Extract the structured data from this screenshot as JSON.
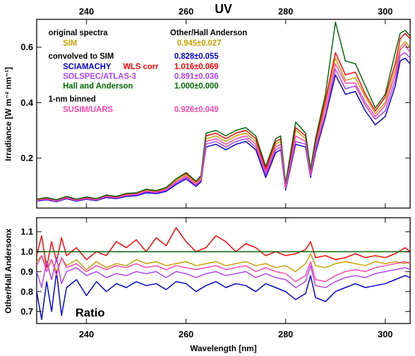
{
  "chart_data": [
    {
      "type": "line",
      "title": "UV",
      "xlabel": "",
      "ylabel": "Irradiance [W m⁻² nm⁻¹]",
      "xlim": [
        230,
        305
      ],
      "ylim": [
        0.02,
        0.7
      ],
      "x_ticks": [
        240,
        260,
        280,
        300
      ],
      "y_ticks": [
        0.2,
        0.4,
        0.6
      ],
      "x": [
        230,
        232,
        234,
        236,
        238,
        240,
        242,
        244,
        246,
        248,
        250,
        252,
        254,
        256,
        258,
        260,
        262,
        263,
        264,
        266,
        268,
        270,
        272,
        274,
        276,
        278,
        279,
        280,
        282,
        284,
        285,
        286,
        288,
        290,
        292,
        294,
        296,
        298,
        300,
        302,
        303,
        304,
        305
      ],
      "series": [
        {
          "name": "SIM",
          "color": "#c8a000",
          "values": [
            0.05,
            0.055,
            0.048,
            0.06,
            0.05,
            0.058,
            0.052,
            0.065,
            0.06,
            0.07,
            0.072,
            0.085,
            0.08,
            0.09,
            0.12,
            0.14,
            0.11,
            0.13,
            0.27,
            0.28,
            0.26,
            0.28,
            0.29,
            0.26,
            0.16,
            0.25,
            0.26,
            0.1,
            0.3,
            0.27,
            0.15,
            0.25,
            0.4,
            0.56,
            0.48,
            0.49,
            0.42,
            0.36,
            0.4,
            0.52,
            0.6,
            0.62,
            0.6
          ]
        },
        {
          "name": "SCIAMACHY",
          "color": "#0000cc",
          "values": [
            0.045,
            0.05,
            0.043,
            0.054,
            0.045,
            0.052,
            0.047,
            0.058,
            0.054,
            0.062,
            0.064,
            0.075,
            0.072,
            0.08,
            0.105,
            0.125,
            0.098,
            0.115,
            0.24,
            0.25,
            0.23,
            0.25,
            0.26,
            0.23,
            0.13,
            0.22,
            0.23,
            0.085,
            0.25,
            0.24,
            0.13,
            0.22,
            0.35,
            0.5,
            0.43,
            0.44,
            0.37,
            0.32,
            0.35,
            0.46,
            0.55,
            0.56,
            0.54
          ]
        },
        {
          "name": "WLS corr",
          "color": "#ff0000",
          "values": [
            0.05,
            0.056,
            0.049,
            0.061,
            0.051,
            0.059,
            0.053,
            0.066,
            0.061,
            0.071,
            0.074,
            0.087,
            0.082,
            0.093,
            0.125,
            0.145,
            0.115,
            0.135,
            0.28,
            0.29,
            0.27,
            0.29,
            0.3,
            0.27,
            0.16,
            0.26,
            0.27,
            0.1,
            0.31,
            0.28,
            0.155,
            0.26,
            0.41,
            0.58,
            0.5,
            0.51,
            0.43,
            0.37,
            0.42,
            0.54,
            0.63,
            0.65,
            0.63
          ]
        },
        {
          "name": "SOLSPEC/ATLAS-3",
          "color": "#b040f0",
          "values": [
            0.047,
            0.052,
            0.045,
            0.056,
            0.047,
            0.054,
            0.049,
            0.061,
            0.056,
            0.065,
            0.067,
            0.079,
            0.075,
            0.084,
            0.11,
            0.13,
            0.102,
            0.12,
            0.25,
            0.26,
            0.24,
            0.26,
            0.27,
            0.24,
            0.14,
            0.23,
            0.24,
            0.09,
            0.26,
            0.25,
            0.135,
            0.23,
            0.36,
            0.52,
            0.45,
            0.46,
            0.39,
            0.34,
            0.37,
            0.48,
            0.57,
            0.58,
            0.56
          ]
        },
        {
          "name": "Hall and Anderson",
          "color": "#006600",
          "values": [
            0.052,
            0.058,
            0.05,
            0.062,
            0.052,
            0.06,
            0.054,
            0.067,
            0.062,
            0.073,
            0.075,
            0.088,
            0.083,
            0.094,
            0.125,
            0.148,
            0.117,
            0.137,
            0.29,
            0.3,
            0.28,
            0.3,
            0.31,
            0.28,
            0.17,
            0.27,
            0.28,
            0.11,
            0.33,
            0.29,
            0.16,
            0.27,
            0.43,
            0.69,
            0.55,
            0.54,
            0.46,
            0.38,
            0.43,
            0.58,
            0.65,
            0.66,
            0.64
          ]
        },
        {
          "name": "SUSIM/UARS",
          "color": "#ff44aa",
          "values": [
            0.048,
            0.053,
            0.046,
            0.057,
            0.048,
            0.055,
            0.05,
            0.062,
            0.057,
            0.066,
            0.069,
            0.081,
            0.077,
            0.087,
            0.115,
            0.135,
            0.105,
            0.125,
            0.26,
            0.27,
            0.25,
            0.27,
            0.28,
            0.25,
            0.15,
            0.24,
            0.25,
            0.095,
            0.28,
            0.26,
            0.14,
            0.24,
            0.38,
            0.54,
            0.47,
            0.47,
            0.4,
            0.35,
            0.39,
            0.5,
            0.59,
            0.61,
            0.58
          ]
        }
      ],
      "legend": {
        "heading_original": "original spectra",
        "heading_ratio": "Other/Hall Anderson",
        "heading_convolved": "convolved to SIM",
        "heading_binned": "1-nm binned",
        "sim_label": "SIM",
        "sim_value": "0.945±0.027",
        "sciamachy_label": "SCIAMACHY",
        "wls_label": "WLS corr",
        "sciamachy_value": "0.828±0.055",
        "wls_value": "1.016±0.069",
        "solspec_label": "SOLSPEC/ATLAS-3",
        "solspec_value": "0.891±0.036",
        "hall_label": "Hall and Anderson",
        "hall_value": "1.000±0.000",
        "susim_label": "SUSIM/UARS",
        "susim_value": "0.926±0.049"
      }
    },
    {
      "type": "line",
      "title": "Ratio",
      "xlabel": "Wavelength [nm]",
      "ylabel": "Other/Hall Andersonx",
      "xlim": [
        230,
        305
      ],
      "ylim": [
        0.64,
        1.17
      ],
      "x_ticks": [
        240,
        260,
        280,
        300
      ],
      "y_ticks": [
        0.7,
        0.8,
        0.9,
        1.0,
        1.1
      ],
      "x": [
        230,
        231,
        232,
        233,
        234,
        235,
        236,
        238,
        240,
        242,
        244,
        246,
        248,
        250,
        252,
        254,
        256,
        258,
        260,
        262,
        264,
        266,
        268,
        270,
        272,
        274,
        276,
        278,
        280,
        282,
        284,
        285,
        286,
        288,
        290,
        292,
        294,
        296,
        298,
        300,
        302,
        304,
        305
      ],
      "series": [
        {
          "name": "SIM",
          "color": "#c8a000",
          "values": [
            0.95,
            0.98,
            0.92,
            0.96,
            0.9,
            0.97,
            0.93,
            0.96,
            0.91,
            0.95,
            0.92,
            0.94,
            0.93,
            0.96,
            0.94,
            0.95,
            0.93,
            0.94,
            0.95,
            0.93,
            0.94,
            0.95,
            0.93,
            0.94,
            0.95,
            0.93,
            0.94,
            0.92,
            0.93,
            0.9,
            0.94,
            0.99,
            0.93,
            0.92,
            0.94,
            0.95,
            0.94,
            0.93,
            0.95,
            0.94,
            0.95,
            0.94,
            0.95
          ]
        },
        {
          "name": "SCIAMACHY",
          "color": "#0000cc",
          "values": [
            0.8,
            0.66,
            0.85,
            0.7,
            0.9,
            0.68,
            0.82,
            0.86,
            0.78,
            0.85,
            0.8,
            0.84,
            0.82,
            0.85,
            0.83,
            0.84,
            0.81,
            0.85,
            0.84,
            0.8,
            0.83,
            0.85,
            0.82,
            0.84,
            0.83,
            0.8,
            0.84,
            0.82,
            0.8,
            0.76,
            0.79,
            0.88,
            0.77,
            0.75,
            0.8,
            0.82,
            0.84,
            0.82,
            0.83,
            0.84,
            0.86,
            0.88,
            0.87
          ]
        },
        {
          "name": "WLS corr",
          "color": "#ff0000",
          "values": [
            0.98,
            1.08,
            0.92,
            1.05,
            0.95,
            1.07,
            0.98,
            1.02,
            0.96,
            1.0,
            0.98,
            1.05,
            1.02,
            1.06,
            1.0,
            1.07,
            1.03,
            1.12,
            1.05,
            1.0,
            1.02,
            1.08,
            1.05,
            1.0,
            1.04,
            1.02,
            0.98,
            1.0,
            0.98,
            0.99,
            1.01,
            1.05,
            0.97,
            0.98,
            0.96,
            0.97,
            0.99,
            0.97,
            0.98,
            0.97,
            0.99,
            1.02,
            1.0
          ]
        },
        {
          "name": "SOLSPEC/ATLAS-3",
          "color": "#b040f0",
          "values": [
            0.9,
            0.82,
            0.95,
            0.86,
            0.97,
            0.84,
            0.9,
            0.92,
            0.88,
            0.9,
            0.87,
            0.89,
            0.88,
            0.9,
            0.89,
            0.9,
            0.87,
            0.9,
            0.89,
            0.87,
            0.89,
            0.9,
            0.88,
            0.89,
            0.9,
            0.87,
            0.89,
            0.87,
            0.86,
            0.82,
            0.85,
            0.93,
            0.83,
            0.82,
            0.85,
            0.87,
            0.88,
            0.87,
            0.89,
            0.9,
            0.91,
            0.92,
            0.91
          ]
        },
        {
          "name": "Hall and Anderson",
          "color": "#006600",
          "values": [
            1.0,
            1.0,
            1.0,
            1.0,
            1.0,
            1.0,
            1.0,
            1.0,
            1.0,
            1.0,
            1.0,
            1.0,
            1.0,
            1.0,
            1.0,
            1.0,
            1.0,
            1.0,
            1.0,
            1.0,
            1.0,
            1.0,
            1.0,
            1.0,
            1.0,
            1.0,
            1.0,
            1.0,
            1.0,
            1.0,
            1.0,
            1.0,
            1.0,
            1.0,
            1.0,
            1.0,
            1.0,
            1.0,
            1.0,
            1.0,
            1.0,
            1.0,
            1.0
          ]
        },
        {
          "name": "SUSIM/UARS",
          "color": "#ff44aa",
          "values": [
            0.93,
            0.98,
            0.9,
            0.96,
            0.88,
            0.97,
            0.92,
            0.94,
            0.9,
            0.93,
            0.91,
            0.93,
            0.92,
            0.94,
            0.92,
            0.93,
            0.91,
            0.93,
            0.92,
            0.91,
            0.92,
            0.93,
            0.91,
            0.92,
            0.93,
            0.9,
            0.92,
            0.9,
            0.89,
            0.85,
            0.88,
            0.95,
            0.86,
            0.85,
            0.88,
            0.9,
            0.91,
            0.9,
            0.92,
            0.93,
            0.94,
            0.95,
            0.94
          ]
        }
      ]
    }
  ]
}
